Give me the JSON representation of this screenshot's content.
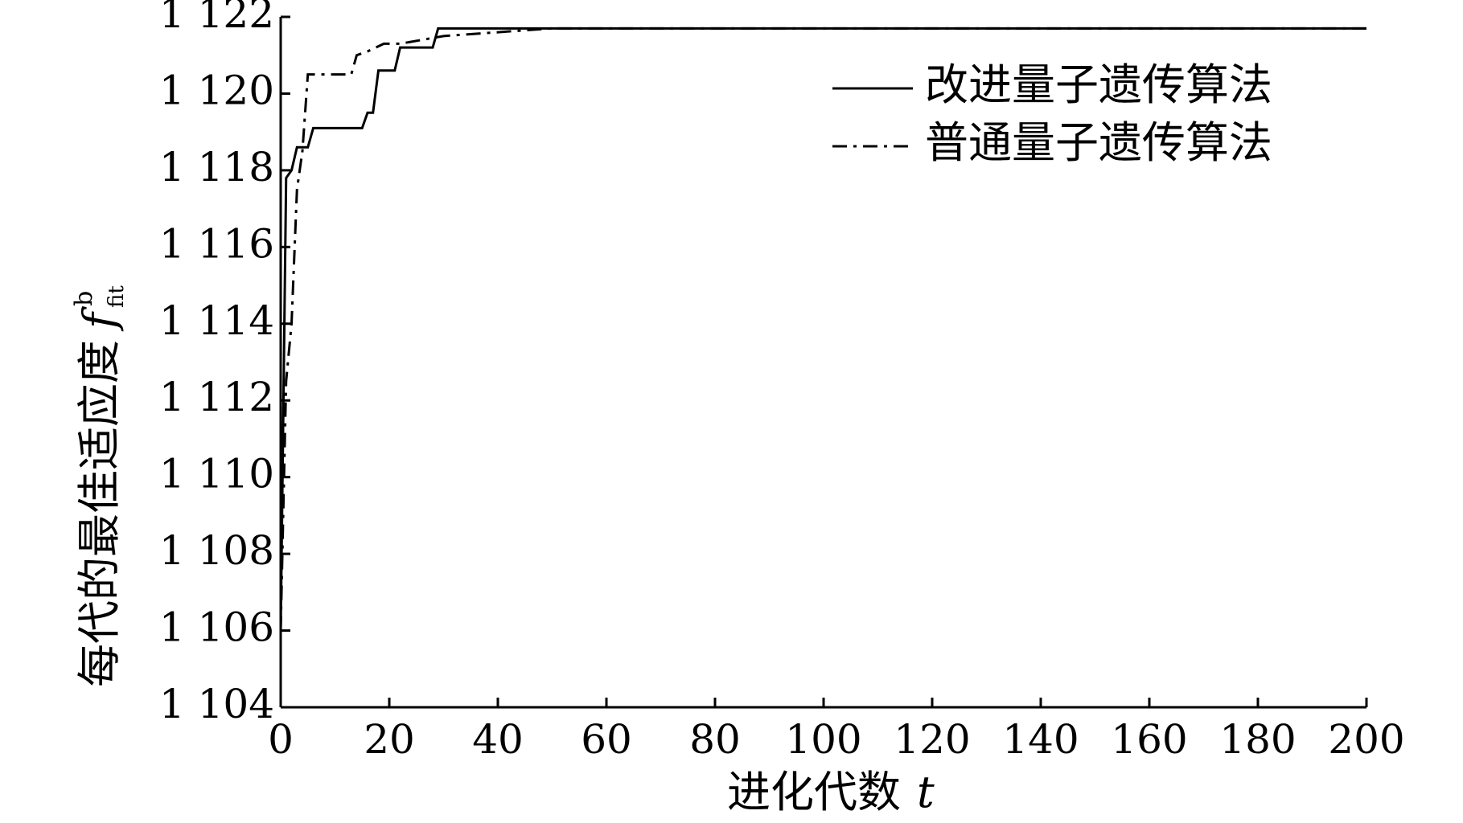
{
  "chart_data": {
    "type": "line",
    "ylabel": {
      "text": "每代的最佳适应度",
      "symbol": "f",
      "superscript": "b",
      "subscript": "fit"
    },
    "xlabel": {
      "text": "进化代数",
      "symbol": "t"
    },
    "xlim": [
      0,
      200
    ],
    "xticks": [
      0,
      20,
      40,
      60,
      80,
      100,
      120,
      140,
      160,
      180,
      200
    ],
    "ylim": [
      1104,
      1122
    ],
    "yticks": [
      {
        "value": 1104,
        "label": "1 104"
      },
      {
        "value": 1106,
        "label": "1 106"
      },
      {
        "value": 1108,
        "label": "1 108"
      },
      {
        "value": 1110,
        "label": "1 110"
      },
      {
        "value": 1112,
        "label": "1 112"
      },
      {
        "value": 1114,
        "label": "1 114"
      },
      {
        "value": 1116,
        "label": "1 116"
      },
      {
        "value": 1118,
        "label": "1 118"
      },
      {
        "value": 1120,
        "label": "1 120"
      },
      {
        "value": 1122,
        "label": "1 122"
      }
    ],
    "legend": "upper right",
    "series": [
      {
        "name": "改进量子遗传算法",
        "color": "#000000",
        "style": "solid",
        "x": [
          0,
          1,
          2,
          3,
          5,
          6,
          15,
          16,
          17,
          18,
          21,
          22,
          28,
          29,
          200
        ],
        "values": [
          1106,
          1117.8,
          1118.0,
          1118.6,
          1118.6,
          1119.1,
          1119.1,
          1119.5,
          1119.5,
          1120.6,
          1120.6,
          1121.2,
          1121.2,
          1121.7,
          1121.7
        ]
      },
      {
        "name": "普通量子遗传算法",
        "color": "#000000",
        "style": "dash-dot",
        "x": [
          0,
          1,
          2,
          3,
          4,
          5,
          13,
          14,
          16,
          19,
          22,
          30,
          40,
          50,
          200
        ],
        "values": [
          1106,
          1112.5,
          1114,
          1117.5,
          1118.5,
          1120.5,
          1120.5,
          1121.0,
          1121.1,
          1121.3,
          1121.3,
          1121.5,
          1121.6,
          1121.7,
          1121.7
        ]
      }
    ]
  }
}
